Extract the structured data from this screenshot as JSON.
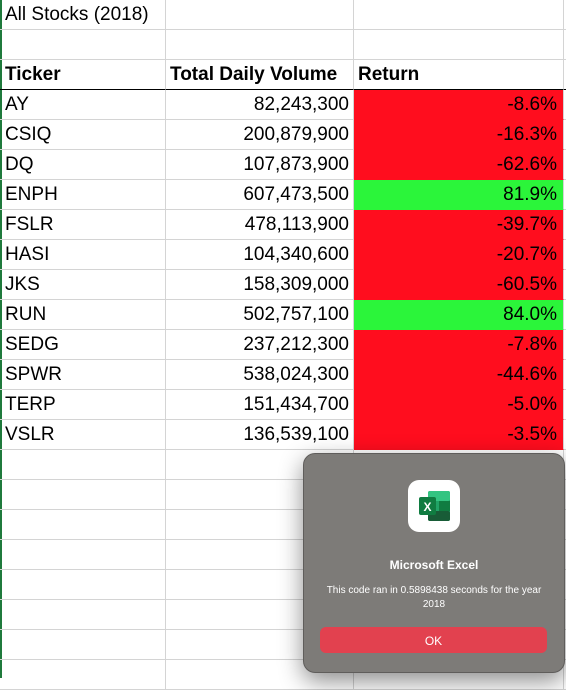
{
  "sheet": {
    "title": "All Stocks (2018)",
    "headers": [
      "Ticker",
      "Total Daily Volume",
      "Return"
    ],
    "rows": [
      {
        "ticker": "AY",
        "volume": "82,243,300",
        "return": "-8.6%",
        "status": "negative"
      },
      {
        "ticker": "CSIQ",
        "volume": "200,879,900",
        "return": "-16.3%",
        "status": "negative"
      },
      {
        "ticker": "DQ",
        "volume": "107,873,900",
        "return": "-62.6%",
        "status": "negative"
      },
      {
        "ticker": "ENPH",
        "volume": "607,473,500",
        "return": "81.9%",
        "status": "positive"
      },
      {
        "ticker": "FSLR",
        "volume": "478,113,900",
        "return": "-39.7%",
        "status": "negative"
      },
      {
        "ticker": "HASI",
        "volume": "104,340,600",
        "return": "-20.7%",
        "status": "negative"
      },
      {
        "ticker": "JKS",
        "volume": "158,309,000",
        "return": "-60.5%",
        "status": "negative"
      },
      {
        "ticker": "RUN",
        "volume": "502,757,100",
        "return": "84.0%",
        "status": "positive"
      },
      {
        "ticker": "SEDG",
        "volume": "237,212,300",
        "return": "-7.8%",
        "status": "negative"
      },
      {
        "ticker": "SPWR",
        "volume": "538,024,300",
        "return": "-44.6%",
        "status": "negative"
      },
      {
        "ticker": "TERP",
        "volume": "151,434,700",
        "return": "-5.0%",
        "status": "negative"
      },
      {
        "ticker": "VSLR",
        "volume": "136,539,100",
        "return": "-3.5%",
        "status": "negative"
      }
    ],
    "colors": {
      "negative": "#ff0d1e",
      "positive": "#2bf53a"
    }
  },
  "dialog": {
    "app_icon": "excel-icon",
    "title": "Microsoft Excel",
    "message": "This code ran in 0.5898438 seconds for the year 2018",
    "ok_label": "OK"
  }
}
